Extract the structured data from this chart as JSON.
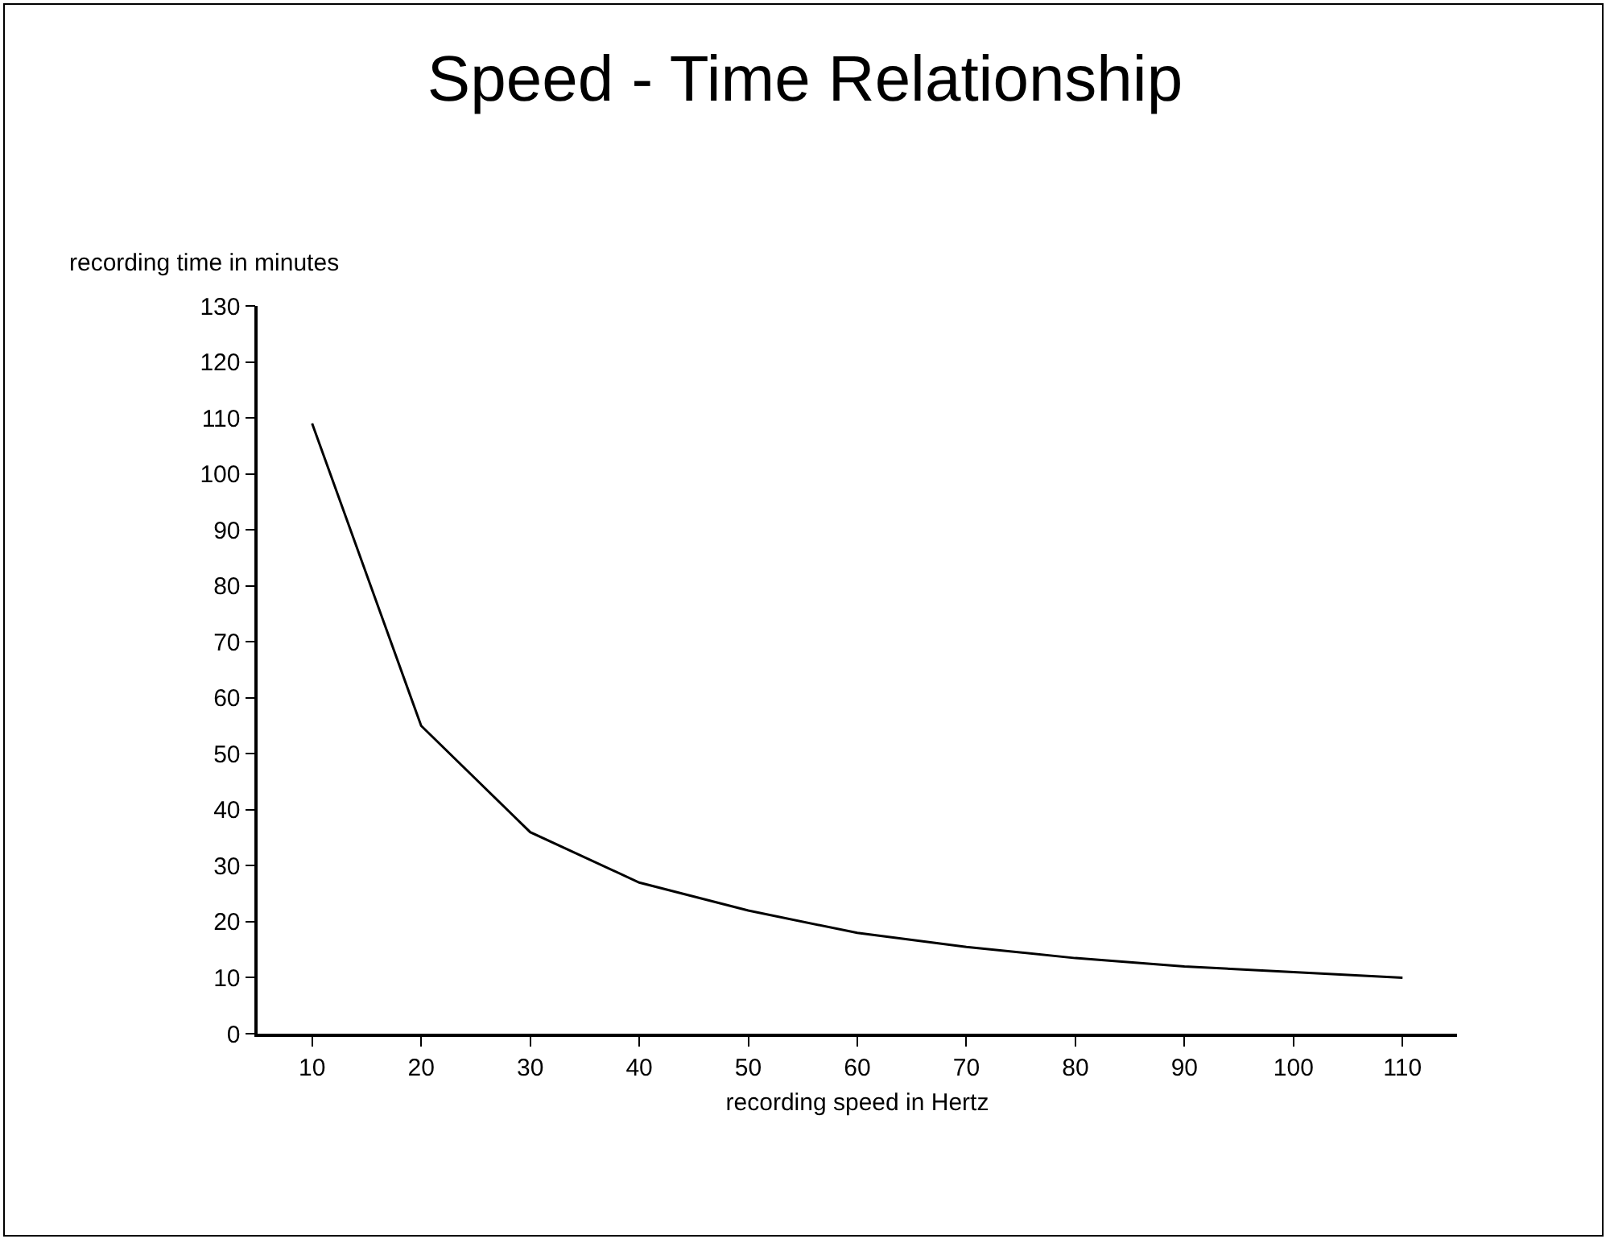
{
  "chart_data": {
    "type": "line",
    "title": "Speed - Time Relationship",
    "xlabel": "recording speed in Hertz",
    "ylabel": "recording time in minutes",
    "x": [
      10,
      20,
      30,
      40,
      50,
      60,
      70,
      80,
      90,
      100,
      110
    ],
    "series": [
      {
        "color": "#000000",
        "values": [
          109,
          55,
          36,
          27,
          22,
          18,
          15.5,
          13.5,
          12,
          11,
          10
        ]
      }
    ],
    "xlim": [
      5,
      115
    ],
    "xticks": [
      10,
      20,
      30,
      40,
      50,
      60,
      70,
      80,
      90,
      100,
      110
    ],
    "ylim": [
      0,
      130
    ],
    "yticks": [
      0,
      10,
      20,
      30,
      40,
      50,
      60,
      70,
      80,
      90,
      100,
      110,
      120,
      130
    ],
    "marker": "none",
    "line_style": "solid"
  }
}
